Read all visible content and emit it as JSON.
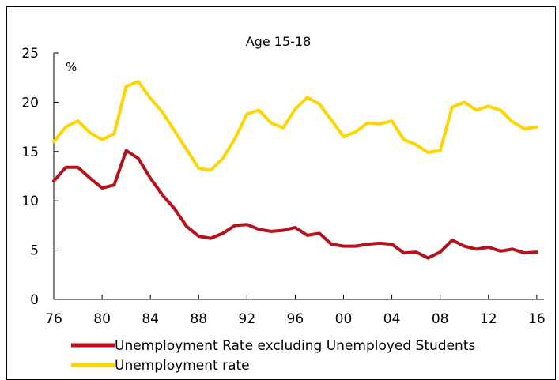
{
  "chart_data": {
    "type": "line",
    "title": "Age 15-18",
    "ylabel": "%",
    "xlabel": "",
    "ylim": [
      0,
      25
    ],
    "yticks": [
      0,
      5,
      10,
      15,
      20,
      25
    ],
    "xlim": [
      1976,
      2016.6
    ],
    "xticks": [
      {
        "year": 1976,
        "label": "76"
      },
      {
        "year": 1980,
        "label": "80"
      },
      {
        "year": 1984,
        "label": "84"
      },
      {
        "year": 1988,
        "label": "88"
      },
      {
        "year": 1992,
        "label": "92"
      },
      {
        "year": 1996,
        "label": "96"
      },
      {
        "year": 2000,
        "label": "00"
      },
      {
        "year": 2004,
        "label": "04"
      },
      {
        "year": 2008,
        "label": "08"
      },
      {
        "year": 2012,
        "label": "12"
      },
      {
        "year": 2016,
        "label": "16"
      }
    ],
    "grid": false,
    "legend_position": "bottom",
    "x": [
      1976,
      1977,
      1978,
      1979,
      1980,
      1981,
      1982,
      1983,
      1984,
      1985,
      1986,
      1987,
      1988,
      1989,
      1990,
      1991,
      1992,
      1993,
      1994,
      1995,
      1996,
      1997,
      1998,
      1999,
      2000,
      2001,
      2002,
      2003,
      2004,
      2005,
      2006,
      2007,
      2008,
      2009,
      2010,
      2011,
      2012,
      2013,
      2014,
      2015,
      2016
    ],
    "series": [
      {
        "name": "Unemployment Rate excluding Unemployed Students",
        "color": "#B5121B",
        "values": [
          12.0,
          13.4,
          13.4,
          12.3,
          11.3,
          11.6,
          15.1,
          14.3,
          12.3,
          10.6,
          9.2,
          7.4,
          6.4,
          6.2,
          6.7,
          7.5,
          7.6,
          7.1,
          6.9,
          7.0,
          7.3,
          6.5,
          6.7,
          5.6,
          5.4,
          5.4,
          5.6,
          5.7,
          5.6,
          4.7,
          4.8,
          4.2,
          4.8,
          6.0,
          5.4,
          5.1,
          5.3,
          4.9,
          5.1,
          4.7,
          4.8
        ]
      },
      {
        "name": "Unemployment rate",
        "color": "#FFD500",
        "values": [
          16.0,
          17.5,
          18.1,
          16.9,
          16.2,
          16.8,
          21.6,
          22.1,
          20.4,
          19.0,
          17.1,
          15.2,
          13.3,
          13.1,
          14.3,
          16.3,
          18.8,
          19.2,
          17.9,
          17.4,
          19.3,
          20.5,
          19.8,
          18.2,
          16.5,
          17.0,
          17.9,
          17.8,
          18.1,
          16.2,
          15.7,
          14.9,
          15.1,
          19.5,
          20.0,
          19.2,
          19.6,
          19.2,
          18.0,
          17.3,
          17.5
        ]
      }
    ]
  }
}
